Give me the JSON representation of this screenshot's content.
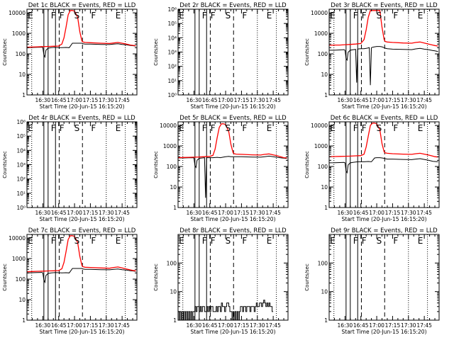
{
  "meta": {
    "colors": {
      "background": "#ffffff",
      "axis": "#000000",
      "events": "#000000",
      "lld": "#ff0000"
    }
  },
  "shared": {
    "xlabel": "Start Time (20-Jun-15 16:15:20)",
    "ylabel": "Counts/sec",
    "xticks": [
      "16:30",
      "16:45",
      "17:00",
      "17:15",
      "17:30",
      "17:45"
    ],
    "xticks_min": [
      15,
      30,
      45,
      60,
      75,
      90
    ],
    "xlim_min_from_start": [
      0,
      104
    ],
    "region_markers": [
      {
        "label": "E",
        "at_min": 0.2
      },
      {
        "label": "F",
        "at_min": 22
      },
      {
        "label": "F",
        "at_min": 30
      },
      {
        "label": "S",
        "at_min": 44
      },
      {
        "label": "F",
        "at_min": 60
      },
      {
        "label": "E",
        "at_min": 83
      }
    ],
    "vlines": [
      {
        "at_min": 4.5,
        "style": "dotted"
      },
      {
        "at_min": 16,
        "style": "solid"
      },
      {
        "at_min": 20,
        "style": "solid"
      },
      {
        "at_min": 27,
        "style": "solid"
      },
      {
        "at_min": 30.5,
        "style": "dashed"
      },
      {
        "at_min": 52.5,
        "style": "dashed"
      },
      {
        "at_min": 75,
        "style": "dotted"
      },
      {
        "at_min": 93,
        "style": "dotted"
      }
    ]
  },
  "chart_data": [
    {
      "type": "line",
      "title": "Det 1c BLACK = Events, RED = LLD",
      "yscale": "log",
      "ylim": [
        1,
        15000
      ],
      "yticks": [
        1,
        10,
        100,
        1000,
        10000
      ],
      "ytick_labels": [
        "1",
        "10",
        "100",
        "1000",
        "10000"
      ],
      "series": [
        {
          "name": "Events",
          "color": "#000000",
          "x": [
            0,
            5,
            10,
            14,
            15,
            16,
            17,
            18,
            20,
            23,
            25,
            26,
            27,
            30,
            33,
            37,
            40,
            43,
            45,
            48,
            50,
            52,
            53,
            55,
            60,
            70,
            78,
            82,
            86,
            90,
            94,
            98,
            100,
            103
          ],
          "y": [
            200,
            205,
            210,
            212,
            200,
            90,
            70,
            150,
            190,
            200,
            205,
            210,
            205,
            200,
            200,
            205,
            200,
            330,
            330,
            330,
            330,
            330,
            310,
            300,
            300,
            290,
            285,
            300,
            310,
            290,
            275,
            255,
            250,
            240
          ]
        },
        {
          "name": "LLD",
          "color": "#ff0000",
          "x": [
            0,
            5,
            10,
            15,
            20,
            25,
            30,
            33,
            35,
            37,
            39,
            41,
            43,
            45,
            48,
            50,
            52,
            53,
            55,
            60,
            70,
            78,
            82,
            86,
            90,
            94,
            98,
            100,
            103
          ],
          "y": [
            210,
            215,
            220,
            225,
            230,
            235,
            240,
            300,
            600,
            2000,
            8000,
            13000,
            13000,
            12000,
            6000,
            1200,
            420,
            380,
            360,
            350,
            330,
            320,
            340,
            360,
            330,
            300,
            270,
            260,
            250
          ]
        }
      ]
    },
    {
      "type": "line",
      "title": "Det 2r BLACK = Events, RED = LLD",
      "yscale": "log",
      "ylim": [
        1,
        1000000
      ],
      "yticks": [
        1,
        10,
        100,
        1000,
        10000,
        100000,
        1000000
      ],
      "ytick_labels": [
        "10⁰",
        "10¹",
        "10²",
        "10³",
        "10⁴",
        "10⁵",
        "10⁶"
      ],
      "series": []
    },
    {
      "type": "line",
      "title": "Det 3r BLACK = Events, RED = LLD",
      "yscale": "log",
      "ylim": [
        1,
        15000
      ],
      "yticks": [
        1,
        10,
        100,
        1000,
        10000
      ],
      "ytick_labels": [
        "1",
        "10",
        "100",
        "1000",
        "10000"
      ],
      "series": [
        {
          "name": "Events",
          "color": "#000000",
          "x": [
            0,
            5,
            10,
            14,
            15,
            16,
            17,
            18,
            20,
            23,
            25,
            26,
            27,
            28,
            30,
            33,
            36,
            38,
            39,
            40,
            41,
            43,
            45,
            48,
            50,
            52,
            53,
            55,
            60,
            70,
            78,
            82,
            86,
            90,
            94,
            98,
            100,
            103
          ],
          "y": [
            150,
            150,
            155,
            160,
            150,
            60,
            50,
            120,
            150,
            160,
            165,
            4,
            170,
            175,
            180,
            180,
            190,
            200,
            3,
            200,
            210,
            220,
            230,
            230,
            220,
            200,
            190,
            180,
            170,
            165,
            160,
            175,
            185,
            170,
            160,
            145,
            140,
            130
          ]
        },
        {
          "name": "LLD",
          "color": "#ff0000",
          "x": [
            0,
            5,
            10,
            15,
            20,
            25,
            30,
            33,
            35,
            37,
            39,
            41,
            43,
            45,
            48,
            50,
            52,
            53,
            55,
            60,
            70,
            78,
            82,
            86,
            90,
            94,
            98,
            100,
            103
          ],
          "y": [
            260,
            270,
            270,
            280,
            290,
            300,
            320,
            500,
            1500,
            6000,
            13000,
            13000,
            13000,
            13000,
            13000,
            2000,
            500,
            400,
            380,
            360,
            340,
            330,
            360,
            380,
            340,
            300,
            270,
            255,
            240
          ]
        }
      ]
    },
    {
      "type": "line",
      "title": "Det 4r BLACK = Events, RED = LLD",
      "yscale": "log",
      "ylim": [
        1,
        1000000
      ],
      "yticks": [
        1,
        10,
        100,
        1000,
        10000,
        100000,
        1000000
      ],
      "ytick_labels": [
        "10⁰",
        "10¹",
        "10²",
        "10³",
        "10⁴",
        "10⁵",
        "10⁶"
      ],
      "series": []
    },
    {
      "type": "line",
      "title": "Det 5r BLACK = Events, RED = LLD",
      "yscale": "log",
      "ylim": [
        1,
        15000
      ],
      "yticks": [
        1,
        10,
        100,
        1000,
        10000
      ],
      "ytick_labels": [
        "1",
        "10",
        "100",
        "1000",
        "10000"
      ],
      "series": [
        {
          "name": "Events",
          "color": "#000000",
          "x": [
            0,
            5,
            10,
            14,
            15,
            16,
            17,
            18,
            20,
            23,
            25,
            26,
            27,
            30,
            33,
            37,
            40,
            43,
            45,
            48,
            50,
            52,
            53,
            55,
            60,
            70,
            78,
            82,
            86,
            90,
            94,
            98,
            100,
            103
          ],
          "y": [
            260,
            260,
            265,
            270,
            260,
            110,
            90,
            200,
            250,
            260,
            270,
            3,
            270,
            270,
            270,
            280,
            270,
            290,
            300,
            310,
            300,
            300,
            300,
            300,
            300,
            290,
            285,
            300,
            320,
            300,
            280,
            260,
            255,
            245
          ]
        },
        {
          "name": "LLD",
          "color": "#ff0000",
          "x": [
            0,
            5,
            10,
            15,
            20,
            25,
            30,
            33,
            35,
            37,
            39,
            41,
            43,
            45,
            48,
            50,
            52,
            53,
            55,
            60,
            70,
            78,
            82,
            86,
            90,
            94,
            98,
            100,
            103
          ],
          "y": [
            270,
            275,
            280,
            285,
            290,
            300,
            310,
            350,
            700,
            2500,
            8000,
            12000,
            12000,
            11000,
            5000,
            1200,
            480,
            420,
            400,
            390,
            370,
            360,
            390,
            410,
            370,
            330,
            290,
            270,
            260
          ]
        }
      ]
    },
    {
      "type": "line",
      "title": "Det 6c BLACK = Events, RED = LLD",
      "yscale": "log",
      "ylim": [
        1,
        15000
      ],
      "yticks": [
        1,
        10,
        100,
        1000,
        10000
      ],
      "ytick_labels": [
        "1",
        "10",
        "100",
        "1000",
        "10000"
      ],
      "series": [
        {
          "name": "Events",
          "color": "#000000",
          "x": [
            0,
            5,
            10,
            14,
            15,
            16,
            17,
            18,
            20,
            23,
            25,
            27,
            30,
            33,
            37,
            40,
            43,
            45,
            48,
            50,
            52,
            53,
            55,
            60,
            70,
            78,
            82,
            86,
            90,
            94,
            98,
            100,
            103
          ],
          "y": [
            150,
            152,
            155,
            158,
            150,
            60,
            50,
            120,
            150,
            160,
            165,
            170,
            170,
            170,
            175,
            170,
            260,
            270,
            270,
            260,
            250,
            240,
            230,
            230,
            220,
            215,
            230,
            240,
            220,
            200,
            180,
            175,
            170
          ]
        },
        {
          "name": "LLD",
          "color": "#ff0000",
          "x": [
            0,
            5,
            10,
            15,
            20,
            25,
            30,
            33,
            35,
            37,
            39,
            41,
            43,
            45,
            48,
            50,
            52,
            53,
            55,
            60,
            70,
            78,
            82,
            86,
            90,
            94,
            98,
            100,
            103
          ],
          "y": [
            300,
            305,
            310,
            315,
            320,
            330,
            340,
            400,
            900,
            3000,
            10000,
            13000,
            13000,
            12000,
            6000,
            1300,
            520,
            460,
            440,
            420,
            400,
            390,
            420,
            440,
            400,
            360,
            320,
            300,
            290
          ]
        }
      ]
    },
    {
      "type": "line",
      "title": "Det 7c BLACK = Events, RED = LLD",
      "yscale": "log",
      "ylim": [
        1,
        15000
      ],
      "yticks": [
        1,
        10,
        100,
        1000,
        10000
      ],
      "ytick_labels": [
        "1",
        "10",
        "100",
        "1000",
        "10000"
      ],
      "series": [
        {
          "name": "Events",
          "color": "#000000",
          "x": [
            0,
            5,
            10,
            14,
            15,
            16,
            17,
            18,
            20,
            23,
            25,
            27,
            30,
            33,
            37,
            40,
            43,
            45,
            48,
            50,
            52,
            53,
            55,
            60,
            70,
            78,
            82,
            86,
            90,
            94,
            98,
            100,
            103
          ],
          "y": [
            200,
            205,
            210,
            212,
            200,
            90,
            70,
            150,
            190,
            200,
            205,
            210,
            205,
            200,
            205,
            200,
            330,
            330,
            330,
            330,
            330,
            310,
            300,
            300,
            290,
            285,
            300,
            310,
            290,
            275,
            255,
            250,
            240
          ]
        },
        {
          "name": "LLD",
          "color": "#ff0000",
          "x": [
            0,
            5,
            10,
            15,
            20,
            25,
            30,
            33,
            35,
            37,
            39,
            41,
            43,
            45,
            48,
            50,
            52,
            53,
            55,
            60,
            70,
            78,
            82,
            86,
            90,
            94,
            98,
            100,
            103
          ],
          "y": [
            230,
            235,
            240,
            245,
            250,
            255,
            260,
            320,
            650,
            2200,
            8500,
            13000,
            13000,
            12000,
            6000,
            1300,
            460,
            400,
            380,
            370,
            350,
            340,
            370,
            390,
            350,
            310,
            280,
            265,
            255
          ]
        }
      ]
    },
    {
      "type": "line",
      "title": "Det 8r BLACK = Events, RED = LLD",
      "yscale": "log",
      "ylim": [
        1,
        1000
      ],
      "yticks": [
        1,
        10,
        100
      ],
      "ytick_labels": [
        "1",
        "10",
        "100"
      ],
      "series": [
        {
          "name": "Events",
          "color": "#000000",
          "x": [
            0,
            1,
            2,
            3,
            4,
            5,
            6,
            7,
            8,
            9,
            10,
            11,
            12,
            13,
            14,
            15,
            16,
            17,
            18,
            19,
            20,
            21,
            22,
            23,
            24,
            25,
            26,
            27,
            28,
            29,
            30,
            31,
            32,
            33,
            34,
            35,
            36,
            37,
            38,
            39,
            40,
            41,
            42,
            43,
            44,
            45,
            46,
            47,
            48,
            49,
            50,
            51,
            52,
            53,
            54,
            55,
            56,
            57,
            58,
            59,
            60,
            61,
            62,
            63,
            64,
            65,
            66,
            67,
            68,
            69,
            70,
            71,
            72,
            73,
            74,
            75,
            76,
            77,
            78,
            79,
            80,
            81,
            82,
            83,
            84,
            85,
            86,
            87,
            88,
            89,
            90
          ],
          "y": [
            2,
            1,
            2,
            1,
            2,
            1,
            2,
            1,
            2,
            1,
            2,
            1,
            2,
            1,
            2,
            2,
            3,
            2,
            3,
            3,
            2,
            3,
            2,
            3,
            3,
            2,
            2,
            3,
            2,
            3,
            2,
            3,
            3,
            2,
            2,
            2,
            3,
            2,
            3,
            3,
            2,
            4,
            3,
            3,
            2,
            3,
            4,
            4,
            3,
            2,
            2,
            1,
            2,
            1,
            2,
            1,
            2,
            1,
            2,
            3,
            3,
            2,
            3,
            3,
            2,
            3,
            3,
            3,
            2,
            3,
            3,
            3,
            2,
            3,
            4,
            3,
            3,
            4,
            4,
            3,
            4,
            5,
            4,
            3,
            4,
            3,
            4,
            3,
            3,
            2,
            2
          ]
        }
      ]
    },
    {
      "type": "line",
      "title": "Det 9r BLACK = Events, RED = LLD",
      "yscale": "log",
      "ylim": [
        1,
        1000
      ],
      "yticks": [
        1,
        10,
        100
      ],
      "ytick_labels": [
        "1",
        "10",
        "100"
      ],
      "series": []
    }
  ]
}
